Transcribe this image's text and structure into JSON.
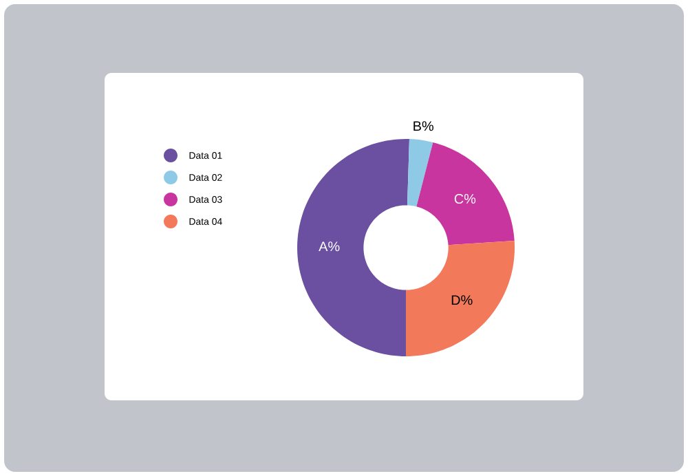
{
  "chart_data": {
    "type": "donut",
    "categories": [
      "Data 01",
      "Data 02",
      "Data 03",
      "Data 04"
    ],
    "values": [
      50.5,
      3.5,
      20,
      26
    ],
    "value_labels": [
      "A%",
      "B%",
      "C%",
      "D%"
    ],
    "colors": [
      "#6b4fa0",
      "#8ecae6",
      "#c8359f",
      "#f2795a"
    ],
    "legend": "left"
  }
}
